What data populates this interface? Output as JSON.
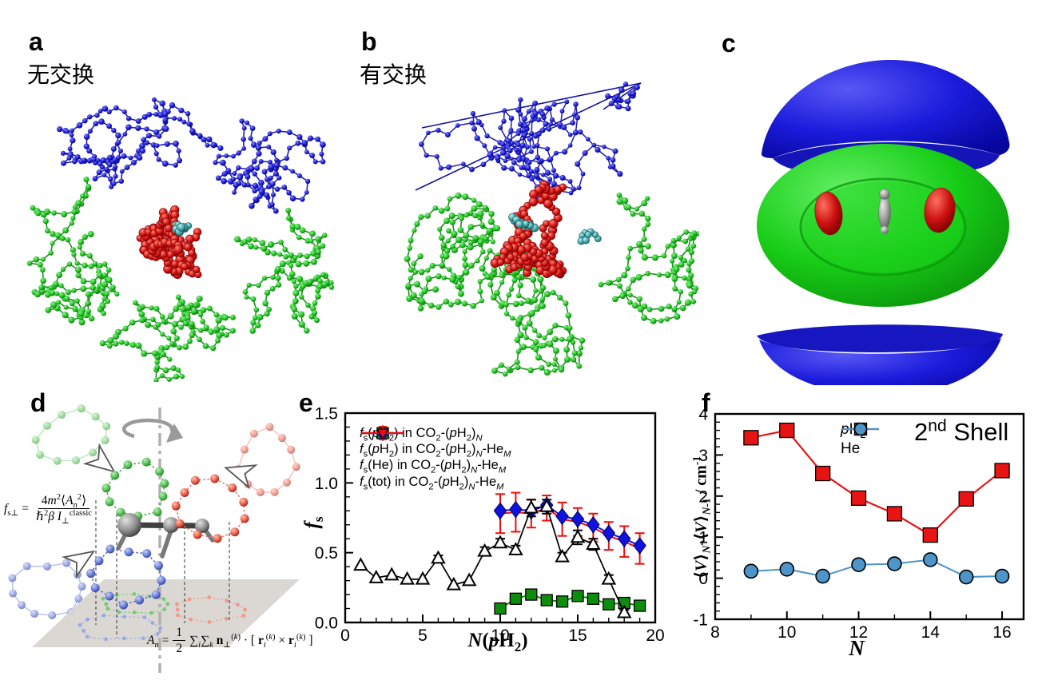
{
  "figure": {
    "background": "#ffffff"
  },
  "panels": {
    "a": {
      "label": "a",
      "caption": "无交换"
    },
    "b": {
      "label": "b",
      "caption": "有交换"
    },
    "c": {
      "label": "c"
    },
    "d": {
      "label": "d",
      "eq1_lhs": "*f*_{s⊥} =",
      "eq1_num": "4*m*^{2}⟨*A*_{*n*}^{2}⟩",
      "eq1_den": "ℏ^{2}*β I*_{⊥}^{classic}",
      "eq2_lhs": "*A*_{*n*} =",
      "eq2_num": "1",
      "eq2_den": "2",
      "eq2_rhs": "∑_{*i*}∑_{*k*} !n!_{⊥}^{(*k*)} · [ !r!_{*i*}^{(*k*)} × !r!_{*i*}^{(*k*)} ]"
    },
    "e": {
      "label": "e"
    },
    "f": {
      "label": "f"
    }
  },
  "colors": {
    "polymer_blue": "#1b1bd0",
    "polymer_green": "#1fc41f",
    "co2_red": "#d81414",
    "carbon_cyan": "#45aaad",
    "iso_blue": "#1b1bdc",
    "iso_green": "#17cd17",
    "iso_red": "#cc1010",
    "iso_gray": "#9c9c9c",
    "series_black": "#000000",
    "series_green": "#0d8c0d",
    "series_blue": "#1212dd",
    "series_red": "#ee0c0c",
    "f_red": "#e81414",
    "f_he_blue": "#4d94c8"
  },
  "chart_data": [
    {
      "id": "e",
      "type": "line",
      "xlabel_rich": "!*N*(*p*H_{2})!",
      "ylabel_rich": "!*f*_{s}!",
      "xlim": [
        0,
        20
      ],
      "ylim": [
        0,
        1.5
      ],
      "xticks": [
        0,
        5,
        10,
        15,
        20
      ],
      "xtick_labels": [
        "0",
        "5",
        "10",
        "15",
        "20"
      ],
      "yticks": [
        0,
        0.5,
        1,
        1.5
      ],
      "ytick_labels": [
        "0.0",
        "0.5",
        "1.0",
        "1.5"
      ],
      "xminor": 1,
      "yminor": 0.1,
      "grid": false,
      "legend_position": "top-left-inside",
      "series": [
        {
          "name_rich": "*f*_{s}(*p*H_{2}) in CO_{2}-(*p*H_{2})_{*N*}",
          "color": "#000000",
          "marker": "triangle-up-open",
          "marker_size": 8,
          "line_width": 1.7,
          "x": [
            1,
            2,
            3,
            4,
            5,
            6,
            7,
            8,
            9,
            10,
            11,
            12,
            13,
            14,
            15,
            16,
            17,
            18
          ],
          "y": [
            0.41,
            0.32,
            0.34,
            0.31,
            0.31,
            0.46,
            0.27,
            0.3,
            0.51,
            0.57,
            0.52,
            0.82,
            0.83,
            0.47,
            0.61,
            0.56,
            0.31,
            0.07
          ],
          "yerr": [
            0,
            0,
            0,
            0,
            0,
            0.02,
            0,
            0,
            0.03,
            0.03,
            0.03,
            0.06,
            0.05,
            0.03,
            0.05,
            0.04,
            0.03,
            0.02
          ]
        },
        {
          "name_rich": "*f*_{s}(*p*H_{2}) in CO_{2}-(*p*H_{2})_{*N*}-He_{*M*}",
          "color": "#0d8c0d",
          "marker": "square-filled",
          "marker_size": 7,
          "line_width": 2,
          "x": [
            10,
            11,
            12,
            13,
            14,
            15,
            16,
            17,
            18,
            19
          ],
          "y": [
            0.1,
            0.17,
            0.2,
            0.16,
            0.15,
            0.19,
            0.17,
            0.13,
            0.14,
            0.12
          ]
        },
        {
          "name_rich": "*f*_{s}(He) in CO_{2}-(*p*H_{2})_{*N*}-He_{*M*}",
          "color": "#1212dd",
          "marker": "diamond-filled",
          "marker_size": 8,
          "line_width": 2,
          "x": [
            10,
            11,
            12,
            13,
            14,
            15,
            16,
            17,
            18,
            19
          ],
          "y": [
            0.8,
            0.81,
            0.8,
            0.84,
            0.76,
            0.74,
            0.7,
            0.64,
            0.6,
            0.55
          ]
        },
        {
          "name_rich": "*f*_{s}(tot) in CO_{2}-(*p*H_{2})_{*N*}-He_{*M*}",
          "color": "#ee0c0c",
          "marker": "triangle-down-filled",
          "marker_size": 7,
          "line_width": 2,
          "x": [
            10,
            11,
            12,
            13,
            14,
            15,
            16,
            17,
            18,
            19
          ],
          "y": [
            0.78,
            0.79,
            0.78,
            0.82,
            0.74,
            0.72,
            0.68,
            0.62,
            0.58,
            0.53
          ],
          "yerr": [
            0.14,
            0.14,
            0.1,
            0.09,
            0.12,
            0.1,
            0.1,
            0.1,
            0.11,
            0.11
          ]
        }
      ]
    },
    {
      "id": "f",
      "type": "line",
      "xlabel_rich": "!*N*!",
      "ylabel_rich": "⟨*V*⟩_{*N*}-⟨*V*⟩_{*N*-1} / cm^{-1}",
      "annotation_rich": "2^{nd} Shell",
      "xlim": [
        8,
        16.6
      ],
      "ylim": [
        -1,
        4
      ],
      "xticks": [
        8,
        10,
        12,
        14,
        16
      ],
      "xtick_labels": [
        "8",
        "10",
        "12",
        "14",
        "16"
      ],
      "yticks": [
        -1,
        0,
        1,
        2,
        3,
        4
      ],
      "ytick_labels": [
        "-1",
        "0",
        "1",
        "2",
        "3",
        "4"
      ],
      "xminor": 1,
      "yminor": 0.2,
      "grid": false,
      "legend_position": "top-center-inside",
      "series": [
        {
          "name_rich": "*p*H_{2}",
          "color": "#e81414",
          "marker": "square-filled",
          "marker_size": 9,
          "line_width": 2.2,
          "x": [
            9,
            10,
            11,
            12,
            13,
            14,
            15,
            16
          ],
          "y": [
            3.42,
            3.6,
            2.55,
            1.95,
            1.57,
            1.05,
            1.93,
            2.62
          ]
        },
        {
          "name_rich": "He",
          "color": "#4d94c8",
          "marker": "circle-filled",
          "marker_size": 8.5,
          "line_width": 2,
          "x": [
            9,
            10,
            11,
            12,
            13,
            14,
            15,
            16
          ],
          "y": [
            0.17,
            0.22,
            0.05,
            0.33,
            0.35,
            0.45,
            0.03,
            0.05
          ]
        }
      ]
    }
  ]
}
